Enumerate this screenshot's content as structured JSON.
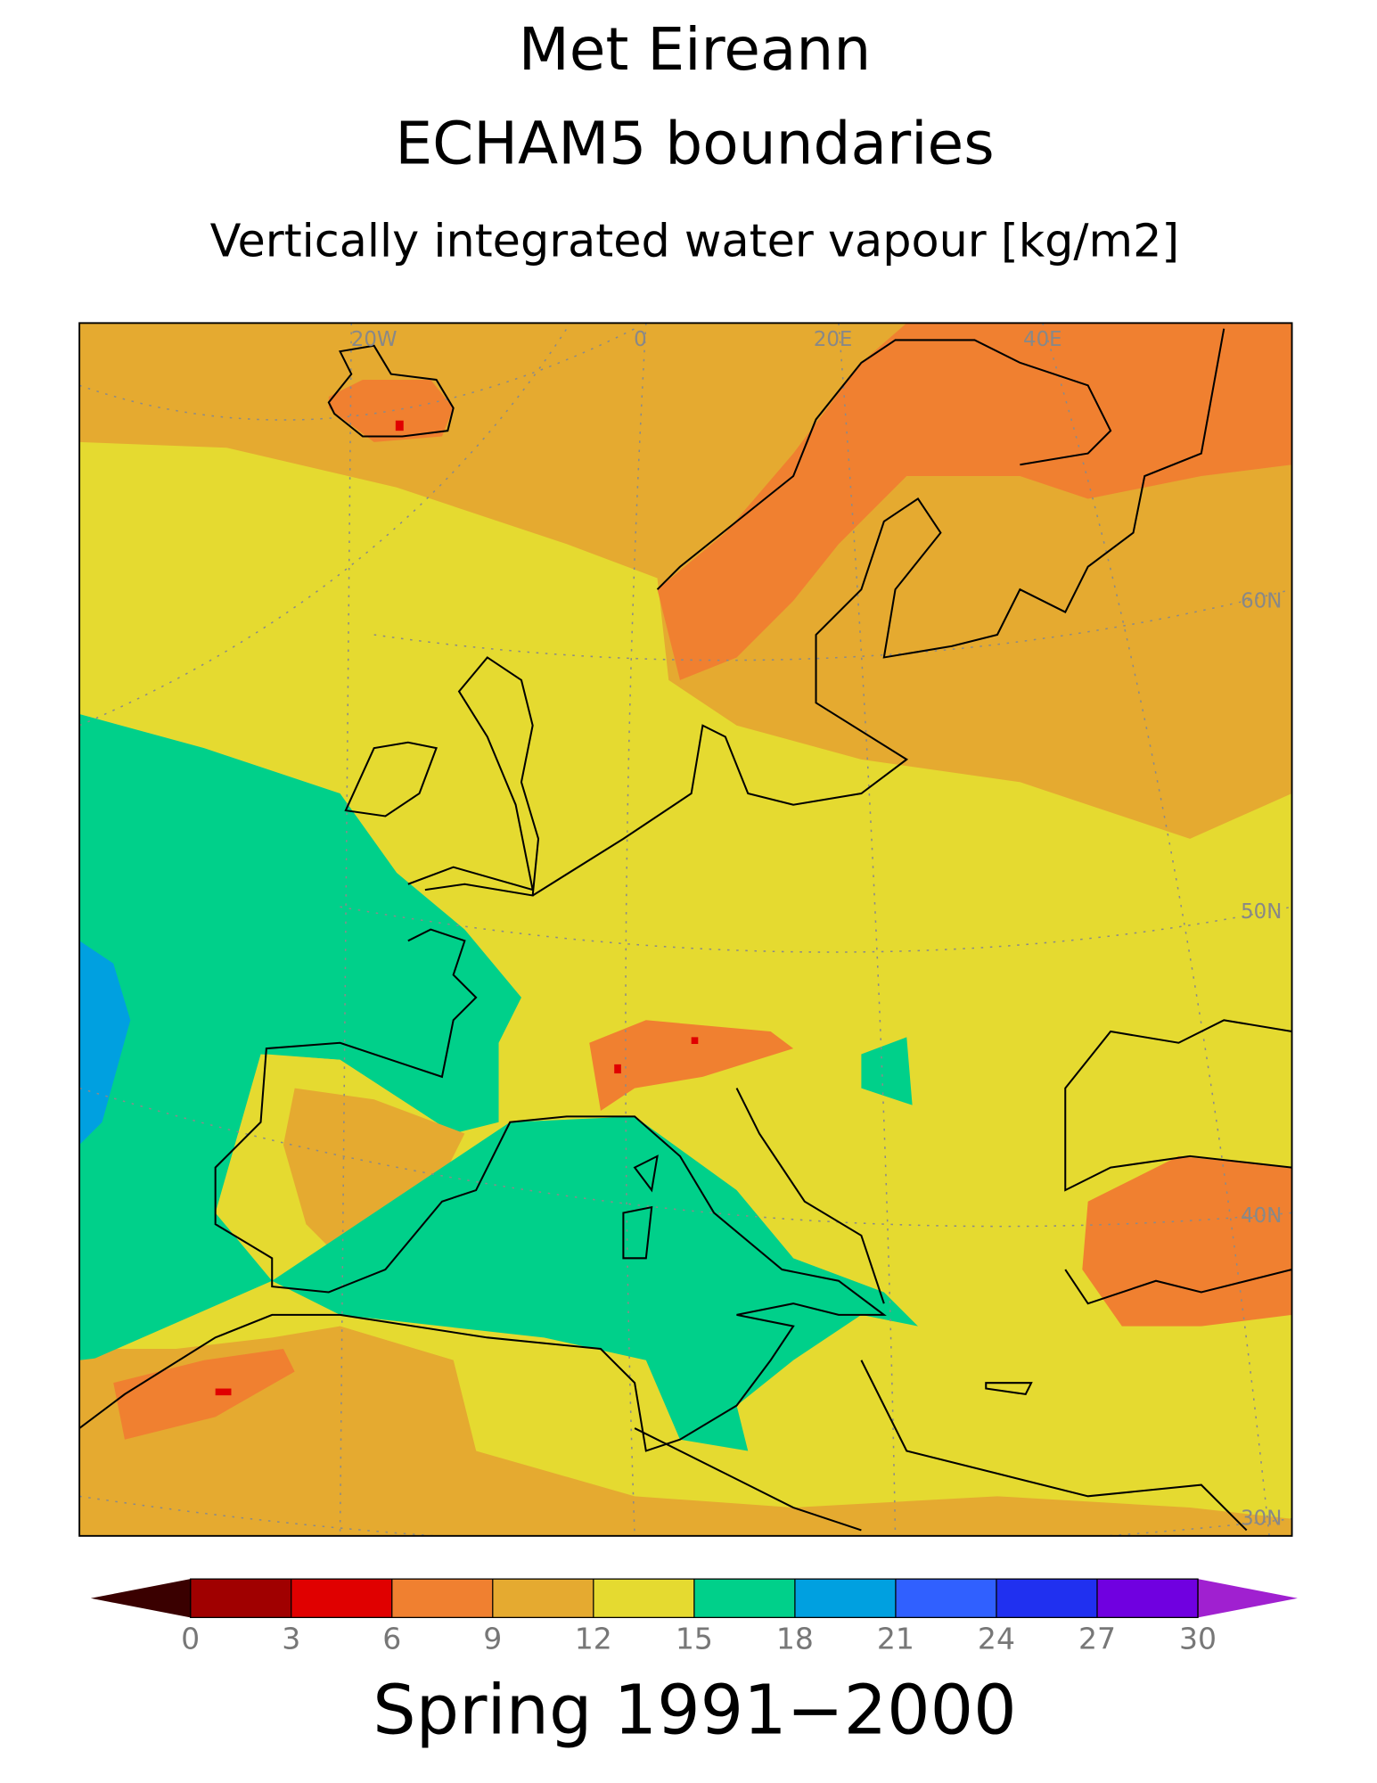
{
  "header": {
    "title": "Met Eireann",
    "subtitle": "ECHAM5 boundaries",
    "variable": "Vertically integrated water vapour [kg/m2]"
  },
  "map": {
    "graticule_labels": [
      "20W",
      "0",
      "20E",
      "40E",
      "60N",
      "50N",
      "40N",
      "30N"
    ]
  },
  "colorbar": {
    "ticks": [
      0,
      3,
      6,
      9,
      12,
      15,
      18,
      21,
      24,
      27,
      30
    ],
    "colors": [
      "#3a0000",
      "#a00000",
      "#e00000",
      "#f08030",
      "#e5aa30",
      "#e5da30",
      "#00d08a",
      "#00a0e0",
      "#3060ff",
      "#2030f0",
      "#7000e0",
      "#a020d0"
    ]
  },
  "footer": {
    "period": "Spring 1991−2000"
  }
}
